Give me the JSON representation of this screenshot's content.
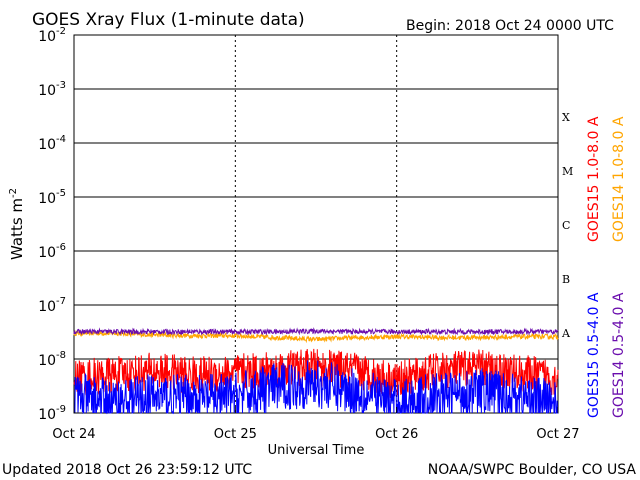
{
  "chart_data": {
    "type": "line",
    "title": "GOES Xray Flux (1-minute data)",
    "begin_label": "Begin:  2018 Oct 24 0000 UTC",
    "xlabel": "Universal Time",
    "ylabel_base": "Watts m",
    "ylabel_exp": "-2",
    "y_scale": "log",
    "ylim": [
      1e-09,
      0.01
    ],
    "y_ticks": [
      {
        "base": "10",
        "exp": "-2",
        "value": 0.01
      },
      {
        "base": "10",
        "exp": "-3",
        "value": 0.001
      },
      {
        "base": "10",
        "exp": "-4",
        "value": 0.0001
      },
      {
        "base": "10",
        "exp": "-5",
        "value": 1e-05
      },
      {
        "base": "10",
        "exp": "-6",
        "value": 1e-06
      },
      {
        "base": "10",
        "exp": "-7",
        "value": 1e-07
      },
      {
        "base": "10",
        "exp": "-8",
        "value": 1e-08
      },
      {
        "base": "10",
        "exp": "-9",
        "value": 1e-09
      }
    ],
    "x_ticks": [
      "Oct 24",
      "Oct 25",
      "Oct 26",
      "Oct 27"
    ],
    "x_range_days": [
      0,
      3
    ],
    "flare_classes": [
      {
        "label": "X",
        "value": 0.0001
      },
      {
        "label": "M",
        "value": 1e-05
      },
      {
        "label": "C",
        "value": 1e-06
      },
      {
        "label": "B",
        "value": 1e-07
      },
      {
        "label": "A",
        "value": 1e-08
      }
    ],
    "grid": true,
    "series": [
      {
        "name": "GOES15 1.0-8.0 A",
        "color": "#ff0000",
        "band": "long",
        "x_days": [
          0,
          0.25,
          0.5,
          0.75,
          1.0,
          1.25,
          1.5,
          1.75,
          2.0,
          2.25,
          2.5,
          2.75,
          3.0
        ],
        "values": [
          4.5e-09,
          5e-09,
          6e-09,
          5e-09,
          5.5e-09,
          6.5e-09,
          7e-09,
          6e-09,
          4e-09,
          6e-09,
          7e-09,
          5.5e-09,
          4.5e-09
        ]
      },
      {
        "name": "GOES14 1.0-8.0 A",
        "color": "#ffa500",
        "band": "long",
        "x_days": [
          0,
          0.25,
          0.5,
          0.75,
          1.0,
          1.25,
          1.5,
          1.75,
          2.0,
          2.25,
          2.5,
          2.75,
          3.0
        ],
        "values": [
          3e-08,
          3e-08,
          2.8e-08,
          2.7e-08,
          2.7e-08,
          2.5e-08,
          2.3e-08,
          2.5e-08,
          2.6e-08,
          2.5e-08,
          2.5e-08,
          2.6e-08,
          2.6e-08
        ]
      },
      {
        "name": "GOES15 0.5-4.0 A",
        "color": "#0000ff",
        "band": "short",
        "x_days": [
          0,
          0.25,
          0.5,
          0.75,
          1.0,
          1.25,
          1.5,
          1.75,
          2.0,
          2.25,
          2.5,
          2.75,
          3.0
        ],
        "values": [
          2e-09,
          1.5e-09,
          2e-09,
          1.8e-09,
          2e-09,
          3e-09,
          3.5e-09,
          2.5e-09,
          1.5e-09,
          2e-09,
          2.5e-09,
          2e-09,
          1.5e-09
        ]
      },
      {
        "name": "GOES14 0.5-4.0 A",
        "color": "#6a0dad",
        "band": "short",
        "x_days": [
          0,
          0.25,
          0.5,
          0.75,
          1.0,
          1.25,
          1.5,
          1.75,
          2.0,
          2.25,
          2.5,
          2.75,
          3.0
        ],
        "values": [
          3.2e-08,
          3.2e-08,
          3.2e-08,
          3.2e-08,
          3.2e-08,
          3.2e-08,
          3.3e-08,
          3.2e-08,
          3.2e-08,
          3.2e-08,
          3.2e-08,
          3.2e-08,
          3.2e-08
        ]
      }
    ],
    "legend_placement": "right"
  },
  "footer": {
    "updated": "Updated 2018 Oct 26 23:59:12 UTC",
    "credit": "NOAA/SWPC Boulder, CO USA"
  }
}
